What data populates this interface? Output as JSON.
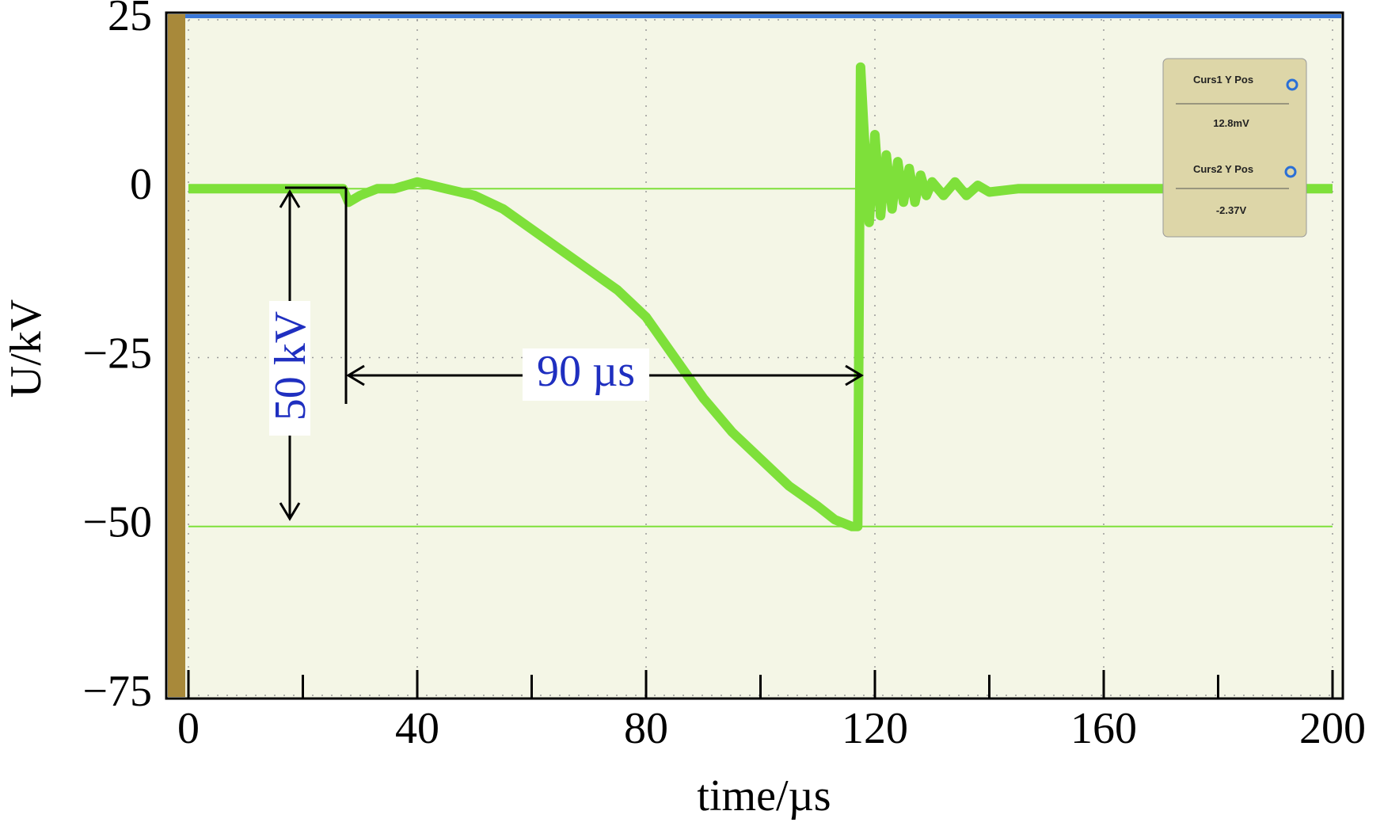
{
  "chart_data": {
    "type": "line",
    "x_label": "time/µs",
    "y_label": "U/kV",
    "x": [
      0,
      5,
      10,
      15,
      20,
      25,
      27,
      28,
      30,
      33,
      36,
      40,
      45,
      50,
      55,
      60,
      65,
      70,
      75,
      80,
      85,
      90,
      95,
      100,
      105,
      110,
      113,
      116,
      117,
      117.5,
      118,
      119,
      120,
      121,
      122,
      123,
      124,
      125,
      126,
      127,
      128,
      129,
      130,
      132,
      134,
      136,
      138,
      140,
      145,
      150,
      155,
      160,
      165,
      170,
      175,
      180,
      185,
      190,
      195,
      200
    ],
    "series": [
      {
        "color": "#7ee03a",
        "values": [
          0,
          0,
          0,
          0,
          0,
          0,
          0,
          -2,
          -1,
          0,
          0,
          1,
          0,
          -1,
          -3,
          -6,
          -9,
          -12,
          -15,
          -19,
          -25,
          -31,
          -36,
          -40,
          -44,
          -47,
          -49,
          -50,
          -50,
          18,
          10,
          -5,
          8,
          -4,
          5,
          -3,
          4,
          -2,
          3,
          -2,
          2,
          -1,
          1,
          -1,
          1,
          -1,
          0.5,
          -0.5,
          0,
          0,
          0,
          0,
          0,
          0,
          0,
          0,
          0,
          0,
          0,
          0
        ]
      }
    ],
    "cursors": [
      0,
      -50
    ],
    "xlim": [
      0,
      200
    ],
    "ylim": [
      -75,
      25
    ],
    "xticks": [
      0,
      40,
      80,
      120,
      160,
      200
    ],
    "yticks": [
      25,
      0,
      {
        "value": -25,
        "label": "−25"
      },
      {
        "value": -50,
        "label": "−50"
      },
      {
        "value": -75,
        "label": "−75"
      }
    ],
    "grid": true,
    "annotations": [
      "50 kV",
      "90 µs"
    ],
    "cursor_box": [
      "Curs1 Y Pos",
      "12.8mV",
      "Curs2 Y Pos",
      "-2.37V"
    ]
  }
}
